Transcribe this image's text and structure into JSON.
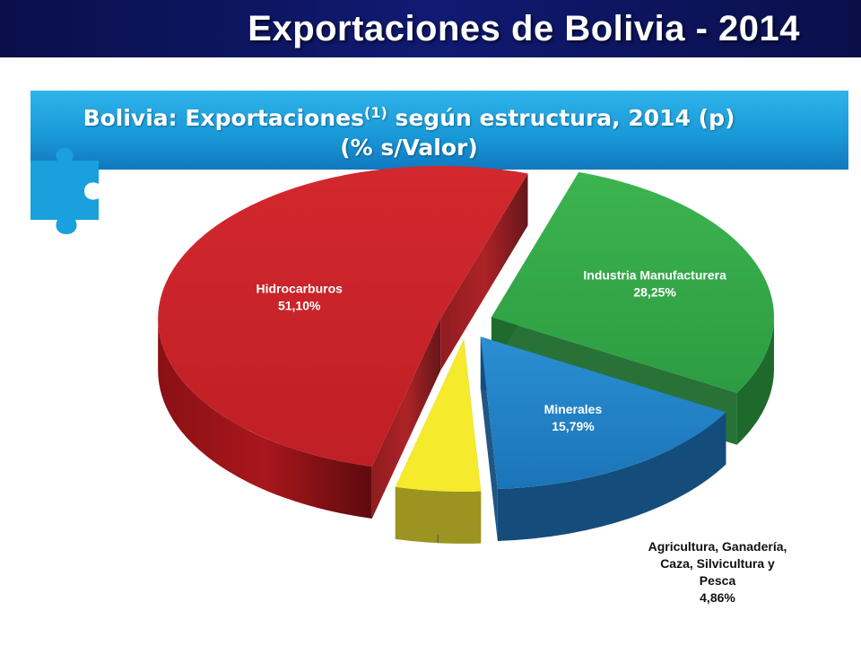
{
  "header": {
    "title": "Exportaciones de Bolivia - 2014"
  },
  "banner": {
    "line1_pre": "Bolivia: Exportaciones",
    "line1_sup": "(1)",
    "line1_post": " según estructura, 2014 (p)",
    "line2": "(% s/Valor)"
  },
  "icons": {
    "puzzle": "puzzle-piece-icon"
  },
  "chart_data": {
    "type": "pie",
    "title": "Bolivia: Exportaciones(1) según estructura, 2014 (p)",
    "subtitle": "(% s/Valor)",
    "unit": "%",
    "exploded": true,
    "three_d": true,
    "slices": [
      {
        "name": "Industria Manufacturera",
        "value": 28.25,
        "label": "28,25%",
        "color": "#33a94a"
      },
      {
        "name": "Minerales",
        "value": 15.79,
        "label": "15,79%",
        "color": "#1f80c5"
      },
      {
        "name": "Agricultura, Ganadería, Caza, Silvicultura y Pesca",
        "value": 4.86,
        "label": "4,86%",
        "color": "#f5ea2b"
      },
      {
        "name": "Hidrocarburos",
        "value": 51.1,
        "label": "51,10%",
        "color": "#c52127"
      }
    ],
    "label_lines": {
      "agri": [
        "Agricultura, Ganadería,",
        "Caza, Silvicultura y",
        "Pesca"
      ]
    }
  }
}
